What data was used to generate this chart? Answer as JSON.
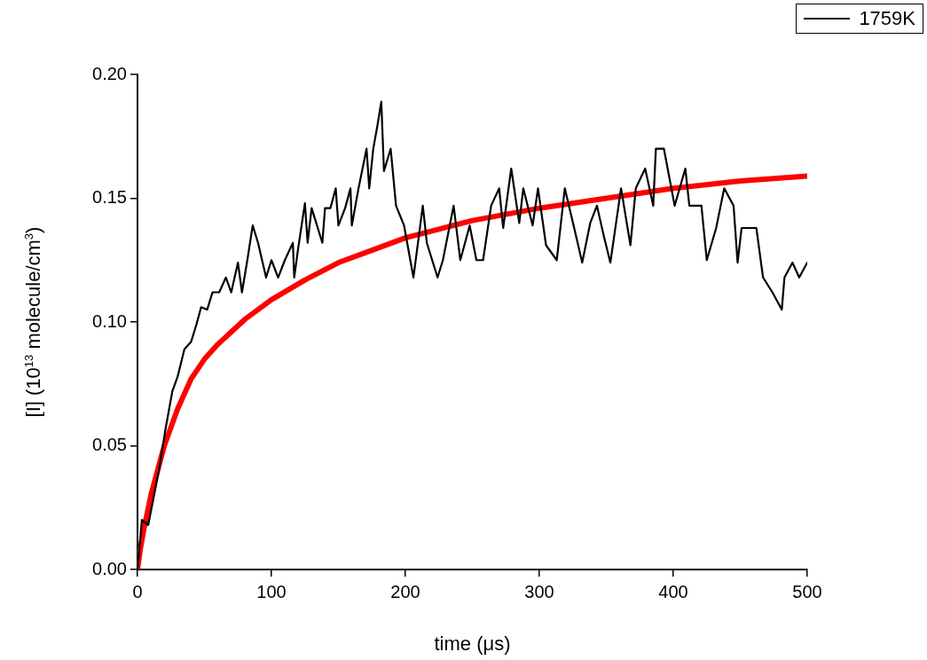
{
  "chart_data": {
    "type": "line",
    "xlabel": "time (μs)",
    "ylabel": "[I] (10$^{13}$ molecule/cm$^{3}$)",
    "xlim": [
      0,
      500
    ],
    "xticks": [
      0,
      100,
      200,
      300,
      400,
      500
    ],
    "ylim": [
      0,
      0.2
    ],
    "yticks": [
      {
        "value": 0,
        "label": "0.00"
      },
      0.05,
      {
        "value": 0.1,
        "label": "0.10"
      },
      0.15,
      {
        "value": 0.2,
        "label": "0.20"
      }
    ],
    "grid": false,
    "legend": "top right",
    "marker": "none",
    "line_style": "solid",
    "series": [
      {
        "name": "1759K",
        "color": "#000000",
        "x": [
          0,
          3.3,
          8,
          12,
          16,
          21,
          26,
          30,
          35,
          40,
          44,
          47.5,
          52,
          56,
          61,
          66,
          70,
          75,
          78,
          82,
          86,
          90,
          93,
          96,
          100,
          105,
          110,
          116,
          117,
          120,
          125,
          127,
          130,
          134,
          138,
          140,
          144,
          148,
          150,
          155,
          159,
          160,
          165,
          171,
          173,
          176,
          179,
          182,
          184,
          189,
          193,
          199,
          206,
          213,
          216,
          224,
          228,
          236,
          241,
          248,
          253,
          258,
          264,
          270,
          273,
          279,
          285,
          288,
          295,
          299,
          305,
          313,
          319,
          326,
          332,
          338,
          343,
          348,
          353,
          361,
          368,
          372,
          379,
          385,
          387,
          393,
          401,
          409,
          412,
          421,
          425,
          432,
          438,
          445,
          448,
          451,
          462,
          467,
          474,
          481,
          483,
          489,
          494,
          500
        ],
        "values": [
          0,
          0.02,
          0.018,
          0.029,
          0.04,
          0.057,
          0.072,
          0.078,
          0.089,
          0.092,
          0.099,
          0.106,
          0.105,
          0.112,
          0.112,
          0.118,
          0.112,
          0.124,
          0.112,
          0.125,
          0.139,
          0.132,
          0.125,
          0.118,
          0.125,
          0.118,
          0.125,
          0.132,
          0.118,
          0.13,
          0.148,
          0.132,
          0.146,
          0.139,
          0.132,
          0.146,
          0.146,
          0.154,
          0.139,
          0.146,
          0.154,
          0.139,
          0.154,
          0.17,
          0.154,
          0.17,
          0.179,
          0.189,
          0.161,
          0.17,
          0.147,
          0.139,
          0.118,
          0.147,
          0.132,
          0.118,
          0.125,
          0.147,
          0.125,
          0.139,
          0.125,
          0.125,
          0.147,
          0.154,
          0.138,
          0.162,
          0.14,
          0.154,
          0.139,
          0.154,
          0.131,
          0.125,
          0.154,
          0.138,
          0.124,
          0.14,
          0.147,
          0.135,
          0.124,
          0.154,
          0.131,
          0.154,
          0.162,
          0.147,
          0.17,
          0.17,
          0.147,
          0.162,
          0.147,
          0.147,
          0.125,
          0.138,
          0.154,
          0.147,
          0.124,
          0.138,
          0.138,
          0.118,
          0.112,
          0.105,
          0.118,
          0.124,
          0.118,
          0.124
        ]
      },
      {
        "color": "#ff0000",
        "x": [
          0,
          2,
          5,
          10,
          15,
          20,
          30,
          40,
          50,
          60,
          80,
          100,
          125,
          150,
          175,
          200,
          250,
          300,
          350,
          400,
          450,
          500
        ],
        "values": [
          0,
          0.008,
          0.017,
          0.03,
          0.04,
          0.05,
          0.065,
          0.077,
          0.085,
          0.091,
          0.101,
          0.109,
          0.117,
          0.124,
          0.129,
          0.134,
          0.141,
          0.146,
          0.15,
          0.154,
          0.157,
          0.159
        ]
      }
    ]
  }
}
